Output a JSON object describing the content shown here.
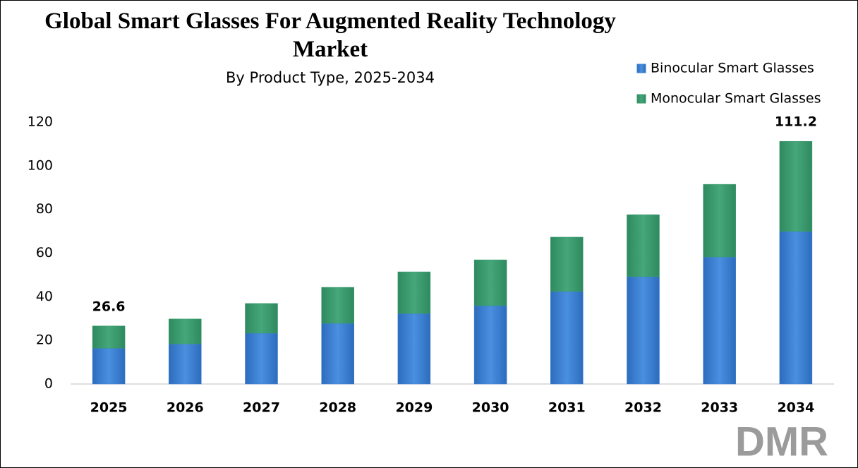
{
  "chart_data": {
    "type": "stacked_bar",
    "title": "Global Smart Glasses For Augmented Reality Technology Market",
    "subtitle": "By Product Type, 2025-2034",
    "categories": [
      "2025",
      "2026",
      "2027",
      "2028",
      "2029",
      "2030",
      "2031",
      "2032",
      "2033",
      "2034"
    ],
    "series": [
      {
        "name": "Binocular Smart Glasses",
        "color": "#3b7fd0",
        "values": [
          16.4,
          18.4,
          23.3,
          27.8,
          32.3,
          35.9,
          42.4,
          49.2,
          58.2,
          69.9
        ]
      },
      {
        "name": "Monocular Smart Glasses",
        "color": "#3a9a6e",
        "values": [
          10.2,
          11.4,
          13.6,
          16.5,
          19.1,
          21.0,
          24.9,
          28.4,
          33.3,
          41.3
        ]
      }
    ],
    "annotations": [
      {
        "x": "2025",
        "value": 26.6
      },
      {
        "x": "2034",
        "value": 111.2
      }
    ],
    "ylim": [
      0,
      120
    ],
    "yticks": [
      0,
      20,
      40,
      60,
      80,
      100,
      120
    ],
    "grid": false,
    "legend": "top-right",
    "logo": "DMR"
  }
}
